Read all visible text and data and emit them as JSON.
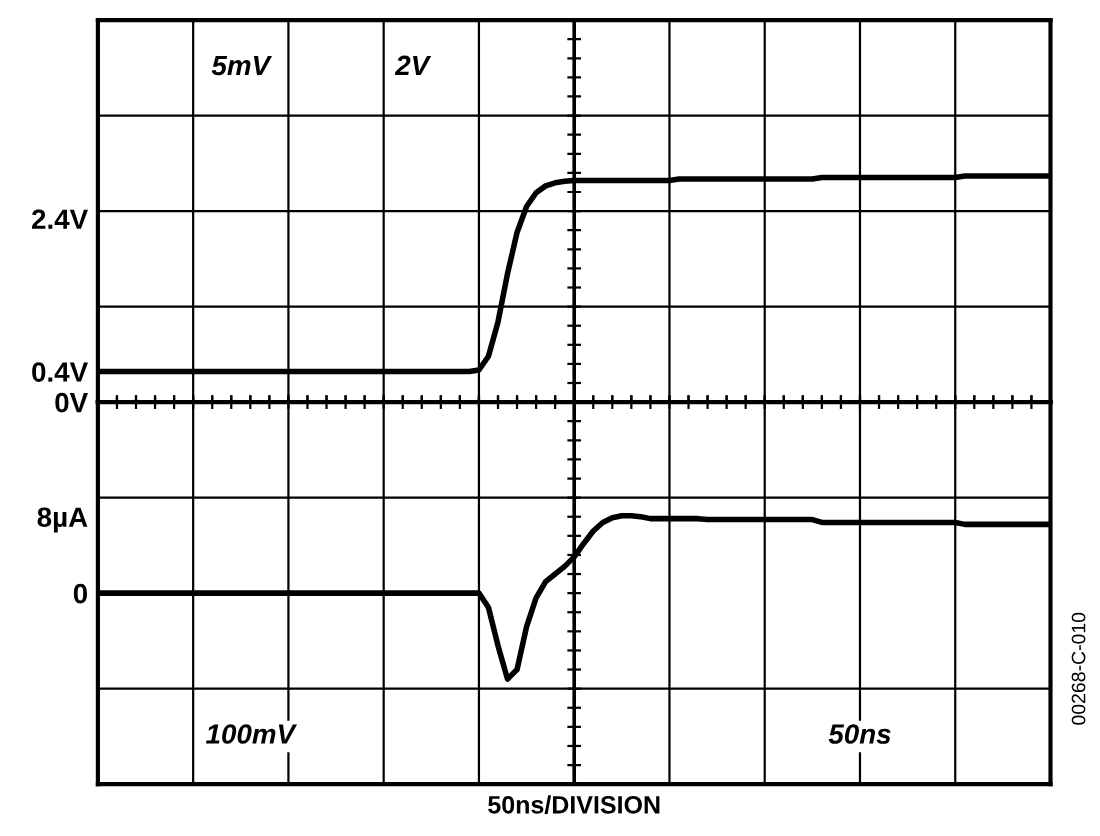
{
  "chart_data": [
    {
      "type": "line",
      "categories": [
        null,
        null,
        null,
        null,
        null,
        null,
        null,
        null,
        null,
        null,
        null,
        null,
        null,
        null,
        null,
        null,
        null,
        null,
        null,
        null,
        null,
        null,
        null,
        null,
        null,
        null,
        null,
        null,
        null,
        null,
        null,
        null,
        null,
        null,
        null,
        null,
        null,
        null,
        null,
        null,
        null,
        null,
        null,
        null,
        null,
        null,
        null,
        null,
        null,
        null,
        null,
        null,
        null,
        null,
        null,
        null,
        null,
        null,
        null,
        null,
        null,
        null,
        null,
        null,
        null,
        null,
        null,
        null,
        null,
        null,
        null,
        null,
        null,
        null,
        null,
        null,
        null,
        null,
        null,
        null,
        null,
        null,
        null,
        null,
        null,
        null,
        null,
        null,
        null,
        null,
        null,
        null,
        null,
        null,
        null,
        null,
        null,
        null,
        null,
        null,
        null
      ],
      "ylim": [
        0,
        5
      ],
      "yticks": [
        {
          "value": 0,
          "label": "0V"
        },
        {
          "value": 0.4,
          "label": "0.4V"
        },
        {
          "value": 1.25,
          "label": null
        },
        {
          "value": 2.4,
          "label": "2.4V"
        },
        {
          "value": 2.5,
          "label": null
        },
        {
          "value": 3.75,
          "label": null
        }
      ],
      "tick_labels": "y",
      "grid": true,
      "marker": "none",
      "line_style": "solid",
      "series": [
        {
          "color": "#000000",
          "values": [
            0.4,
            0.4,
            0.4,
            0.4,
            0.4,
            0.4,
            0.4,
            0.4,
            0.4,
            0.4,
            0.4,
            0.4,
            0.4,
            0.4,
            0.4,
            0.4,
            0.4,
            0.4,
            0.4,
            0.4,
            0.4,
            0.4,
            0.4,
            0.4,
            0.4,
            0.4,
            0.4,
            0.4,
            0.4,
            0.4,
            0.4,
            0.4,
            0.4,
            0.4,
            0.4,
            0.4,
            0.4,
            0.4,
            0.4,
            0.4,
            0.42,
            0.6,
            1.05,
            1.68,
            2.22,
            2.56,
            2.74,
            2.83,
            2.87,
            2.89,
            2.9,
            2.9,
            2.9,
            2.9,
            2.9,
            2.9,
            2.9,
            2.9,
            2.9,
            2.9,
            2.9,
            2.92,
            2.92,
            2.92,
            2.92,
            2.92,
            2.92,
            2.92,
            2.92,
            2.92,
            2.92,
            2.92,
            2.92,
            2.92,
            2.92,
            2.92,
            2.94,
            2.94,
            2.94,
            2.94,
            2.94,
            2.94,
            2.94,
            2.94,
            2.94,
            2.94,
            2.94,
            2.94,
            2.94,
            2.94,
            2.94,
            2.96,
            2.96,
            2.96,
            2.96,
            2.96,
            2.96,
            2.96,
            2.96,
            2.96,
            2.96
          ]
        }
      ],
      "annotations": [
        "5mV",
        "2V"
      ]
    },
    {
      "type": "line",
      "categories": [
        null,
        null,
        null,
        null,
        null,
        null,
        null,
        null,
        null,
        null,
        null,
        null,
        null,
        null,
        null,
        null,
        null,
        null,
        null,
        null,
        null,
        null,
        null,
        null,
        null,
        null,
        null,
        null,
        null,
        null,
        null,
        null,
        null,
        null,
        null,
        null,
        null,
        null,
        null,
        null,
        null,
        null,
        null,
        null,
        null,
        null,
        null,
        null,
        null,
        null,
        null,
        null,
        null,
        null,
        null,
        null,
        null,
        null,
        null,
        null,
        null,
        null,
        null,
        null,
        null,
        null,
        null,
        null,
        null,
        null,
        null,
        null,
        null,
        null,
        null,
        null,
        null,
        null,
        null,
        null,
        null,
        null,
        null,
        null,
        null,
        null,
        null,
        null,
        null,
        null,
        null,
        null,
        null,
        null,
        null,
        null,
        null,
        null,
        null,
        null,
        null
      ],
      "xlabel": "50ns/DIVISION",
      "ylim": [
        -20,
        20
      ],
      "yticks": [
        {
          "value": -10,
          "label": null
        },
        0,
        {
          "value": 8,
          "label": "8µA"
        },
        {
          "value": 10,
          "label": null
        }
      ],
      "tick_labels": "y",
      "grid": true,
      "marker": "none",
      "line_style": "solid",
      "series": [
        {
          "color": "#000000",
          "values": [
            0,
            0,
            0,
            0,
            0,
            0,
            0,
            0,
            0,
            0,
            0,
            0,
            0,
            0,
            0,
            0,
            0,
            0,
            0,
            0,
            0,
            0,
            0,
            0,
            0,
            0,
            0,
            0,
            0,
            0,
            0,
            0,
            0,
            0,
            0,
            0,
            0,
            0,
            0,
            0,
            0,
            -1.5,
            -5.5,
            -9,
            -8,
            -3.5,
            -0.5,
            1.2,
            2.0,
            2.8,
            3.8,
            5.2,
            6.5,
            7.4,
            7.9,
            8.1,
            8.1,
            8.0,
            7.8,
            7.8,
            7.8,
            7.8,
            7.8,
            7.8,
            7.7,
            7.7,
            7.7,
            7.7,
            7.7,
            7.7,
            7.7,
            7.7,
            7.7,
            7.7,
            7.7,
            7.7,
            7.4,
            7.4,
            7.4,
            7.4,
            7.4,
            7.4,
            7.4,
            7.4,
            7.4,
            7.4,
            7.4,
            7.4,
            7.4,
            7.4,
            7.4,
            7.2,
            7.2,
            7.2,
            7.2,
            7.2,
            7.2,
            7.2,
            7.2,
            7.2,
            7.2
          ]
        }
      ],
      "annotations": [
        "100mV",
        "50ns",
        "00268-C-010"
      ]
    }
  ]
}
